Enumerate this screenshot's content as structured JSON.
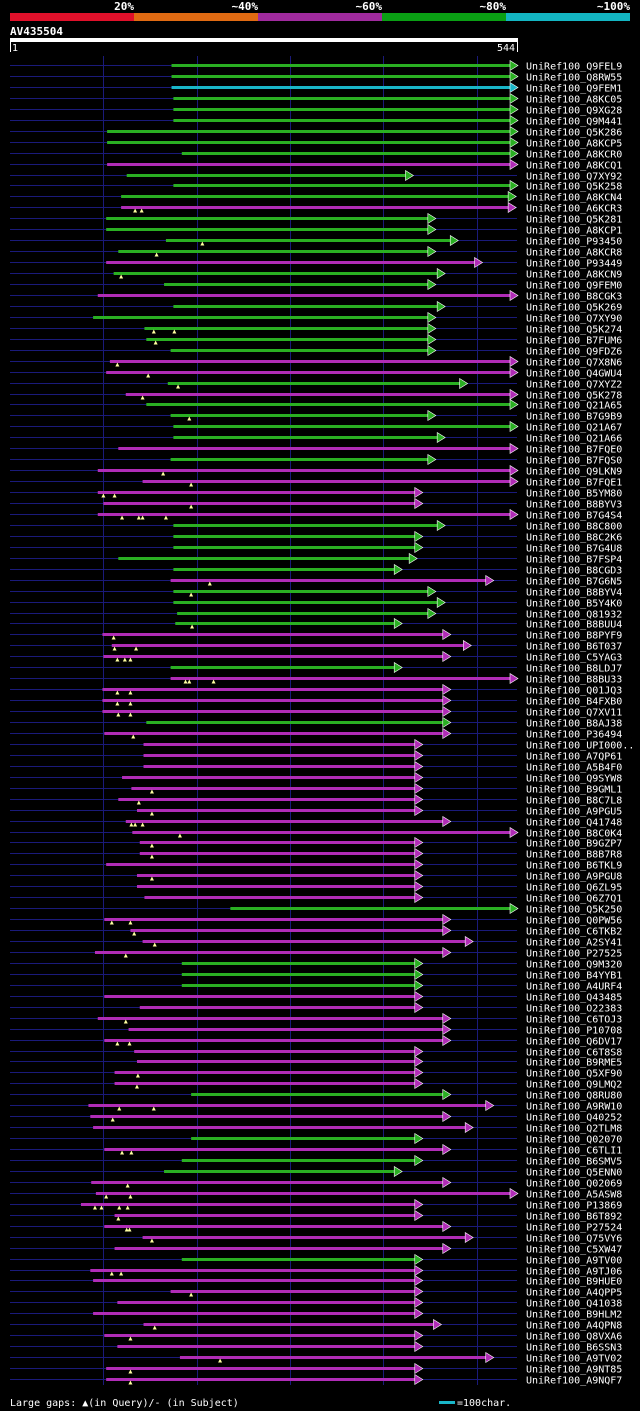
{
  "colors": {
    "bg": "#000000",
    "text": "#ffffff",
    "grid": "#1a1a7a",
    "axis": "#ffffff",
    "band": [
      "#e0102a",
      "#e06a12",
      "#a02a9e",
      "#0a9f14",
      "#13b5c2"
    ],
    "identity": {
      "lt40": "#e0102a",
      "40_60": "#e06a12",
      "60_80": "#b02cb6",
      "80_100": "#2aaf22",
      "100": "#19b6c8"
    }
  },
  "legend_top": {
    "labels": [
      "20%",
      "~40%",
      "~60%",
      "~80%",
      "~100%"
    ]
  },
  "query": {
    "name": "AV435504",
    "start_label": "1",
    "end_label": "544"
  },
  "footer": {
    "gaps_text": "Large gaps: ▲(in Query)/- (in Subject)",
    "scale_text": "=100char."
  },
  "chart_data": {
    "type": "sequence-alignment",
    "query_length": 544,
    "x_range": [
      1,
      544
    ],
    "identity_classes": [
      "60_80",
      "80_100",
      "100"
    ],
    "alignments": [
      {
        "label": "UniRef100_Q9FEL9",
        "start": 174,
        "end": 544,
        "cls": "80_100",
        "gaps": []
      },
      {
        "label": "UniRef100_Q8RW55",
        "start": 174,
        "end": 544,
        "cls": "80_100",
        "gaps": []
      },
      {
        "label": "UniRef100_Q9FEM1",
        "start": 174,
        "end": 544,
        "cls": "100",
        "gaps": []
      },
      {
        "label": "UniRef100_A8KC05",
        "start": 176,
        "end": 544,
        "cls": "80_100",
        "gaps": []
      },
      {
        "label": "UniRef100_Q9XG28",
        "start": 176,
        "end": 544,
        "cls": "80_100",
        "gaps": []
      },
      {
        "label": "UniRef100_Q9M441",
        "start": 176,
        "end": 544,
        "cls": "80_100",
        "gaps": []
      },
      {
        "label": "UniRef100_Q5K286",
        "start": 105,
        "end": 544,
        "cls": "80_100",
        "gaps": []
      },
      {
        "label": "UniRef100_A8KCP5",
        "start": 105,
        "end": 544,
        "cls": "80_100",
        "gaps": []
      },
      {
        "label": "UniRef100_A8KCR0",
        "start": 185,
        "end": 544,
        "cls": "80_100",
        "gaps": []
      },
      {
        "label": "UniRef100_A8KCQ1",
        "start": 105,
        "end": 544,
        "cls": "60_80",
        "gaps": []
      },
      {
        "label": "UniRef100_Q7XY92",
        "start": 126,
        "end": 432,
        "cls": "80_100",
        "gaps": []
      },
      {
        "label": "UniRef100_Q5K258",
        "start": 176,
        "end": 544,
        "cls": "80_100",
        "gaps": []
      },
      {
        "label": "UniRef100_A8KCN4",
        "start": 120,
        "end": 542,
        "cls": "80_100",
        "gaps": []
      },
      {
        "label": "UniRef100_A6KCR3",
        "start": 120,
        "end": 542,
        "cls": "60_80",
        "gaps": [
          135,
          142
        ]
      },
      {
        "label": "UniRef100_Q5K281",
        "start": 104,
        "end": 456,
        "cls": "80_100",
        "gaps": []
      },
      {
        "label": "UniRef100_A8KCP1",
        "start": 104,
        "end": 456,
        "cls": "80_100",
        "gaps": []
      },
      {
        "label": "UniRef100_P93450",
        "start": 168,
        "end": 480,
        "cls": "80_100",
        "gaps": [
          207
        ]
      },
      {
        "label": "UniRef100_A8KCR8",
        "start": 117,
        "end": 456,
        "cls": "80_100",
        "gaps": [
          158
        ]
      },
      {
        "label": "UniRef100_P93449",
        "start": 104,
        "end": 506,
        "cls": "60_80",
        "gaps": []
      },
      {
        "label": "UniRef100_A8KCN9",
        "start": 112,
        "end": 466,
        "cls": "80_100",
        "gaps": [
          120
        ]
      },
      {
        "label": "UniRef100_Q9FEM0",
        "start": 166,
        "end": 456,
        "cls": "80_100",
        "gaps": []
      },
      {
        "label": "UniRef100_B8CGK3",
        "start": 95,
        "end": 544,
        "cls": "60_80",
        "gaps": []
      },
      {
        "label": "UniRef100_Q5K269",
        "start": 176,
        "end": 466,
        "cls": "80_100",
        "gaps": []
      },
      {
        "label": "UniRef100_Q7XY90",
        "start": 90,
        "end": 456,
        "cls": "80_100",
        "gaps": []
      },
      {
        "label": "UniRef100_Q5K274",
        "start": 145,
        "end": 456,
        "cls": "80_100",
        "gaps": [
          155,
          177
        ]
      },
      {
        "label": "UniRef100_B7FUM6",
        "start": 147,
        "end": 456,
        "cls": "80_100",
        "gaps": [
          157
        ]
      },
      {
        "label": "UniRef100_Q9FDZ6",
        "start": 173,
        "end": 456,
        "cls": "80_100",
        "gaps": []
      },
      {
        "label": "UniRef100_Q7X8N6",
        "start": 108,
        "end": 544,
        "cls": "60_80",
        "gaps": [
          116
        ]
      },
      {
        "label": "UniRef100_Q4GWU4",
        "start": 104,
        "end": 544,
        "cls": "60_80",
        "gaps": [
          149
        ]
      },
      {
        "label": "UniRef100_Q7XYZ2",
        "start": 170,
        "end": 490,
        "cls": "80_100",
        "gaps": [
          181
        ]
      },
      {
        "label": "UniRef100_Q5K278",
        "start": 125,
        "end": 544,
        "cls": "60_80",
        "gaps": [
          143
        ]
      },
      {
        "label": "UniRef100_Q21A65",
        "start": 147,
        "end": 544,
        "cls": "80_100",
        "gaps": []
      },
      {
        "label": "UniRef100_B7G9B9",
        "start": 173,
        "end": 456,
        "cls": "80_100",
        "gaps": [
          193
        ]
      },
      {
        "label": "UniRef100_Q21A67",
        "start": 176,
        "end": 544,
        "cls": "80_100",
        "gaps": []
      },
      {
        "label": "UniRef100_Q21A66",
        "start": 176,
        "end": 466,
        "cls": "80_100",
        "gaps": []
      },
      {
        "label": "UniRef100_B7FQE0",
        "start": 117,
        "end": 544,
        "cls": "60_80",
        "gaps": []
      },
      {
        "label": "UniRef100_B7FQS0",
        "start": 173,
        "end": 456,
        "cls": "80_100",
        "gaps": []
      },
      {
        "label": "UniRef100_Q9LKN9",
        "start": 95,
        "end": 544,
        "cls": "60_80",
        "gaps": [
          165
        ]
      },
      {
        "label": "UniRef100_B7FQE1",
        "start": 143,
        "end": 544,
        "cls": "60_80",
        "gaps": [
          195
        ]
      },
      {
        "label": "UniRef100_B5YM80",
        "start": 95,
        "end": 442,
        "cls": "60_80",
        "gaps": [
          101,
          113
        ]
      },
      {
        "label": "UniRef100_B8BYV3",
        "start": 101,
        "end": 442,
        "cls": "60_80",
        "gaps": [
          195
        ]
      },
      {
        "label": "UniRef100_B7G4S4",
        "start": 95,
        "end": 544,
        "cls": "60_80",
        "gaps": [
          121,
          139,
          143,
          168
        ]
      },
      {
        "label": "UniRef100_B8C800",
        "start": 176,
        "end": 466,
        "cls": "80_100",
        "gaps": []
      },
      {
        "label": "UniRef100_B8C2K6",
        "start": 176,
        "end": 442,
        "cls": "80_100",
        "gaps": []
      },
      {
        "label": "UniRef100_B7G4U8",
        "start": 176,
        "end": 442,
        "cls": "80_100",
        "gaps": []
      },
      {
        "label": "UniRef100_B7FSP4",
        "start": 117,
        "end": 436,
        "cls": "80_100",
        "gaps": []
      },
      {
        "label": "UniRef100_B8CGD3",
        "start": 176,
        "end": 420,
        "cls": "80_100",
        "gaps": []
      },
      {
        "label": "UniRef100_B7G6N5",
        "start": 173,
        "end": 518,
        "cls": "60_80",
        "gaps": [
          215
        ]
      },
      {
        "label": "UniRef100_B8BYV4",
        "start": 176,
        "end": 456,
        "cls": "80_100",
        "gaps": [
          195
        ]
      },
      {
        "label": "UniRef100_B5Y4K0",
        "start": 176,
        "end": 466,
        "cls": "80_100",
        "gaps": []
      },
      {
        "label": "UniRef100_Q81932",
        "start": 180,
        "end": 456,
        "cls": "80_100",
        "gaps": []
      },
      {
        "label": "UniRef100_B8BUU4",
        "start": 178,
        "end": 420,
        "cls": "80_100",
        "gaps": [
          196
        ]
      },
      {
        "label": "UniRef100_B8PYF9",
        "start": 100,
        "end": 472,
        "cls": "60_80",
        "gaps": [
          112
        ]
      },
      {
        "label": "UniRef100_B6T037",
        "start": 110,
        "end": 494,
        "cls": "60_80",
        "gaps": [
          113,
          136
        ]
      },
      {
        "label": "UniRef100_C5YAG3",
        "start": 101,
        "end": 472,
        "cls": "60_80",
        "gaps": [
          116,
          124,
          130
        ]
      },
      {
        "label": "UniRef100_B8LDJ7",
        "start": 173,
        "end": 420,
        "cls": "80_100",
        "gaps": []
      },
      {
        "label": "UniRef100_B8BU33",
        "start": 173,
        "end": 544,
        "cls": "60_80",
        "gaps": [
          189,
          193,
          219
        ]
      },
      {
        "label": "UniRef100_Q01JQ3",
        "start": 100,
        "end": 472,
        "cls": "60_80",
        "gaps": [
          116,
          130
        ]
      },
      {
        "label": "UniRef100_B4FXB0",
        "start": 100,
        "end": 472,
        "cls": "60_80",
        "gaps": [
          116,
          130
        ]
      },
      {
        "label": "UniRef100_Q7XV11",
        "start": 100,
        "end": 472,
        "cls": "60_80",
        "gaps": [
          117,
          130
        ]
      },
      {
        "label": "UniRef100_B8AJ38",
        "start": 147,
        "end": 472,
        "cls": "80_100",
        "gaps": []
      },
      {
        "label": "UniRef100_P36494",
        "start": 102,
        "end": 472,
        "cls": "60_80",
        "gaps": [
          133
        ]
      },
      {
        "label": "UniRef100_UPI000..",
        "start": 144,
        "end": 442,
        "cls": "60_80",
        "gaps": []
      },
      {
        "label": "UniRef100_A7QP61",
        "start": 144,
        "end": 442,
        "cls": "60_80",
        "gaps": []
      },
      {
        "label": "UniRef100_A5B4F0",
        "start": 144,
        "end": 442,
        "cls": "60_80",
        "gaps": []
      },
      {
        "label": "UniRef100_Q9SYW8",
        "start": 121,
        "end": 442,
        "cls": "60_80",
        "gaps": []
      },
      {
        "label": "UniRef100_B9GML1",
        "start": 131,
        "end": 442,
        "cls": "60_80",
        "gaps": [
          153
        ]
      },
      {
        "label": "UniRef100_B8C7L8",
        "start": 117,
        "end": 442,
        "cls": "60_80",
        "gaps": [
          139
        ]
      },
      {
        "label": "UniRef100_A9PGU5",
        "start": 137,
        "end": 442,
        "cls": "60_80",
        "gaps": [
          153
        ]
      },
      {
        "label": "UniRef100_Q41748",
        "start": 125,
        "end": 472,
        "cls": "60_80",
        "gaps": [
          131,
          135,
          143
        ]
      },
      {
        "label": "UniRef100_B8C0K4",
        "start": 132,
        "end": 544,
        "cls": "60_80",
        "gaps": [
          183
        ]
      },
      {
        "label": "UniRef100_B9GZP7",
        "start": 140,
        "end": 442,
        "cls": "60_80",
        "gaps": [
          153
        ]
      },
      {
        "label": "UniRef100_B8B7R8",
        "start": 140,
        "end": 442,
        "cls": "60_80",
        "gaps": [
          153
        ]
      },
      {
        "label": "UniRef100_B6TKL9",
        "start": 104,
        "end": 442,
        "cls": "60_80",
        "gaps": []
      },
      {
        "label": "UniRef100_A9PGU8",
        "start": 137,
        "end": 442,
        "cls": "60_80",
        "gaps": [
          153
        ]
      },
      {
        "label": "UniRef100_Q6ZL95",
        "start": 137,
        "end": 442,
        "cls": "60_80",
        "gaps": []
      },
      {
        "label": "UniRef100_Q6Z7Q1",
        "start": 145,
        "end": 442,
        "cls": "60_80",
        "gaps": []
      },
      {
        "label": "UniRef100_Q5K250",
        "start": 237,
        "end": 544,
        "cls": "80_100",
        "gaps": []
      },
      {
        "label": "UniRef100_Q0PW56",
        "start": 102,
        "end": 472,
        "cls": "60_80",
        "gaps": [
          110,
          130
        ]
      },
      {
        "label": "UniRef100_C6TKB2",
        "start": 130,
        "end": 472,
        "cls": "60_80",
        "gaps": [
          134
        ]
      },
      {
        "label": "UniRef100_A2SY41",
        "start": 143,
        "end": 496,
        "cls": "60_80",
        "gaps": [
          156
        ]
      },
      {
        "label": "UniRef100_P27525",
        "start": 92,
        "end": 472,
        "cls": "60_80",
        "gaps": [
          125
        ]
      },
      {
        "label": "UniRef100_Q9M320",
        "start": 185,
        "end": 442,
        "cls": "80_100",
        "gaps": []
      },
      {
        "label": "UniRef100_B4YYB1",
        "start": 185,
        "end": 442,
        "cls": "80_100",
        "gaps": []
      },
      {
        "label": "UniRef100_A4URF4",
        "start": 185,
        "end": 442,
        "cls": "80_100",
        "gaps": []
      },
      {
        "label": "UniRef100_Q43485",
        "start": 102,
        "end": 442,
        "cls": "60_80",
        "gaps": []
      },
      {
        "label": "UniRef100_O22383",
        "start": 140,
        "end": 442,
        "cls": "60_80",
        "gaps": []
      },
      {
        "label": "UniRef100_C6TOJ3",
        "start": 95,
        "end": 472,
        "cls": "60_80",
        "gaps": [
          125
        ]
      },
      {
        "label": "UniRef100_P10708",
        "start": 128,
        "end": 472,
        "cls": "60_80",
        "gaps": []
      },
      {
        "label": "UniRef100_Q6DV17",
        "start": 102,
        "end": 472,
        "cls": "60_80",
        "gaps": [
          116,
          129
        ]
      },
      {
        "label": "UniRef100_C6T8S8",
        "start": 134,
        "end": 442,
        "cls": "60_80",
        "gaps": []
      },
      {
        "label": "UniRef100_B9RME5",
        "start": 137,
        "end": 442,
        "cls": "60_80",
        "gaps": []
      },
      {
        "label": "UniRef100_Q5XF90",
        "start": 113,
        "end": 442,
        "cls": "60_80",
        "gaps": [
          138
        ]
      },
      {
        "label": "UniRef100_Q9LMQ2",
        "start": 113,
        "end": 442,
        "cls": "60_80",
        "gaps": [
          137
        ]
      },
      {
        "label": "UniRef100_Q8RU80",
        "start": 195,
        "end": 472,
        "cls": "80_100",
        "gaps": []
      },
      {
        "label": "UniRef100_A9RW10",
        "start": 85,
        "end": 518,
        "cls": "60_80",
        "gaps": [
          118,
          155
        ]
      },
      {
        "label": "UniRef100_Q40252",
        "start": 87,
        "end": 472,
        "cls": "60_80",
        "gaps": [
          111
        ]
      },
      {
        "label": "UniRef100_Q2TLM8",
        "start": 90,
        "end": 496,
        "cls": "60_80",
        "gaps": []
      },
      {
        "label": "UniRef100_Q02070",
        "start": 195,
        "end": 442,
        "cls": "80_100",
        "gaps": []
      },
      {
        "label": "UniRef100_C6TLI1",
        "start": 102,
        "end": 472,
        "cls": "60_80",
        "gaps": [
          121,
          131
        ]
      },
      {
        "label": "UniRef100_B6SMV5",
        "start": 185,
        "end": 442,
        "cls": "80_100",
        "gaps": []
      },
      {
        "label": "UniRef100_Q5ENN0",
        "start": 166,
        "end": 420,
        "cls": "80_100",
        "gaps": []
      },
      {
        "label": "UniRef100_Q02069",
        "start": 88,
        "end": 472,
        "cls": "60_80",
        "gaps": [
          127
        ]
      },
      {
        "label": "UniRef100_A5ASW8",
        "start": 93,
        "end": 544,
        "cls": "60_80",
        "gaps": [
          104,
          130
        ]
      },
      {
        "label": "UniRef100_P13869",
        "start": 77,
        "end": 442,
        "cls": "60_80",
        "gaps": [
          92,
          99,
          118,
          127
        ]
      },
      {
        "label": "UniRef100_B6T892",
        "start": 113,
        "end": 442,
        "cls": "60_80",
        "gaps": [
          117
        ]
      },
      {
        "label": "UniRef100_P27524",
        "start": 102,
        "end": 472,
        "cls": "60_80",
        "gaps": [
          126,
          129
        ]
      },
      {
        "label": "UniRef100_Q75VY6",
        "start": 143,
        "end": 496,
        "cls": "60_80",
        "gaps": [
          153
        ]
      },
      {
        "label": "UniRef100_C5XW47",
        "start": 113,
        "end": 472,
        "cls": "60_80",
        "gaps": []
      },
      {
        "label": "UniRef100_A9TV00",
        "start": 185,
        "end": 442,
        "cls": "80_100",
        "gaps": []
      },
      {
        "label": "UniRef100_A9TJ06",
        "start": 87,
        "end": 442,
        "cls": "60_80",
        "gaps": [
          110,
          120
        ]
      },
      {
        "label": "UniRef100_B9HUE0",
        "start": 90,
        "end": 442,
        "cls": "60_80",
        "gaps": []
      },
      {
        "label": "UniRef100_A4QPP5",
        "start": 173,
        "end": 442,
        "cls": "60_80",
        "gaps": [
          195
        ]
      },
      {
        "label": "UniRef100_Q41038",
        "start": 116,
        "end": 442,
        "cls": "60_80",
        "gaps": []
      },
      {
        "label": "UniRef100_B9HLM2",
        "start": 90,
        "end": 442,
        "cls": "60_80",
        "gaps": []
      },
      {
        "label": "UniRef100_A4QPN8",
        "start": 144,
        "end": 462,
        "cls": "60_80",
        "gaps": [
          156
        ]
      },
      {
        "label": "UniRef100_Q8VXA6",
        "start": 102,
        "end": 442,
        "cls": "60_80",
        "gaps": [
          130
        ]
      },
      {
        "label": "UniRef100_B6SSN3",
        "start": 116,
        "end": 442,
        "cls": "60_80",
        "gaps": []
      },
      {
        "label": "UniRef100_A9TV02",
        "start": 183,
        "end": 518,
        "cls": "60_80",
        "gaps": [
          226
        ]
      },
      {
        "label": "UniRef100_A9NT85",
        "start": 104,
        "end": 442,
        "cls": "60_80",
        "gaps": [
          130
        ]
      },
      {
        "label": "UniRef100_A9NQF7",
        "start": 104,
        "end": 442,
        "cls": "60_80",
        "gaps": [
          130
        ]
      }
    ]
  }
}
